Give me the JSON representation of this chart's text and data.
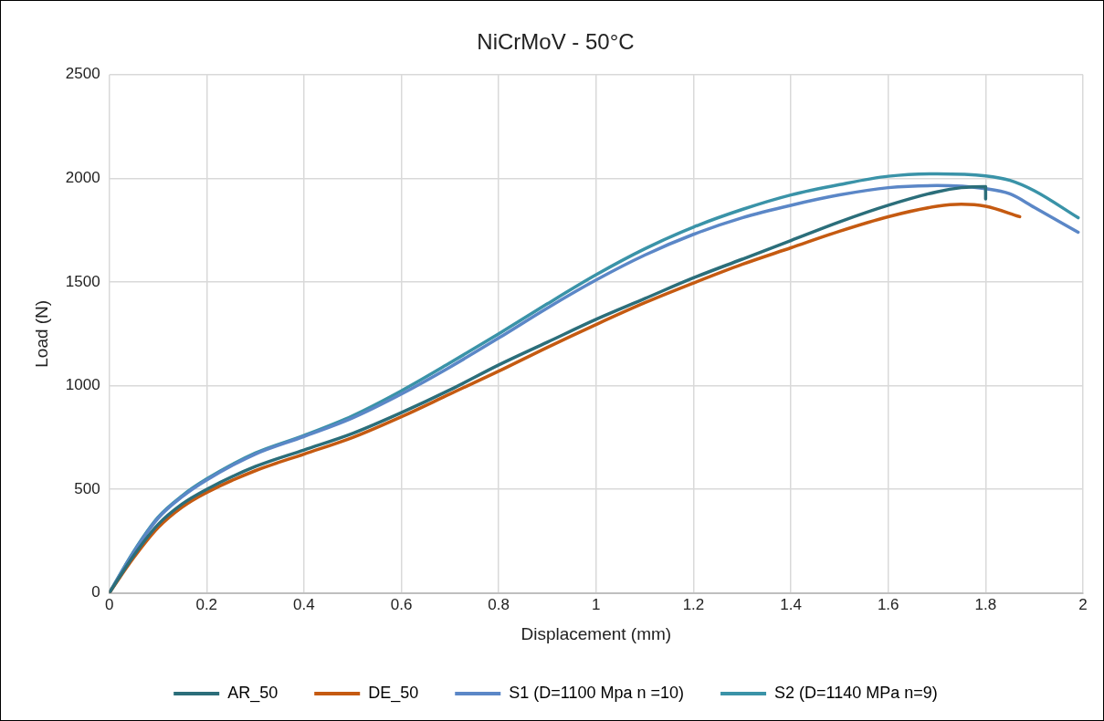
{
  "chart_data": {
    "type": "line",
    "title": "NiCrMoV - 50°C",
    "xlabel": "Displacement (mm)",
    "ylabel": "Load (N)",
    "xlim": [
      0,
      2
    ],
    "xticks": [
      0,
      {
        "value": 0.2,
        "label": "0.2"
      },
      {
        "value": 0.4,
        "label": "0.4"
      },
      {
        "value": 0.6,
        "label": "0.6"
      },
      {
        "value": 0.8,
        "label": "0.8"
      },
      1,
      {
        "value": 1.2,
        "label": "1.2"
      },
      {
        "value": 1.4,
        "label": "1.4"
      },
      {
        "value": 1.6,
        "label": "1.6"
      },
      {
        "value": 1.8,
        "label": "1.8"
      },
      2
    ],
    "ylim": [
      0,
      2500
    ],
    "yticks": [
      0,
      500,
      1000,
      1500,
      2000,
      2500
    ],
    "grid": true,
    "legend": "bottom",
    "marker": "none",
    "line_style": "solid",
    "series": [
      {
        "name": "AR_50",
        "color": "#2b6e7a",
        "x": [
          0,
          0.05,
          0.1,
          0.15,
          0.2,
          0.3,
          0.4,
          0.5,
          0.6,
          0.7,
          0.8,
          0.9,
          1.0,
          1.1,
          1.2,
          1.3,
          1.4,
          1.5,
          1.6,
          1.7,
          1.75,
          1.8,
          1.8
        ],
        "values": [
          0,
          180,
          330,
          430,
          500,
          610,
          690,
          770,
          870,
          980,
          1100,
          1210,
          1320,
          1420,
          1520,
          1610,
          1700,
          1790,
          1870,
          1935,
          1955,
          1960,
          1900
        ]
      },
      {
        "name": "DE_50",
        "color": "#c55a11",
        "x": [
          0,
          0.05,
          0.1,
          0.15,
          0.2,
          0.3,
          0.4,
          0.5,
          0.6,
          0.7,
          0.8,
          0.9,
          1.0,
          1.1,
          1.2,
          1.3,
          1.4,
          1.5,
          1.6,
          1.7,
          1.75,
          1.8,
          1.87
        ],
        "values": [
          0,
          170,
          315,
          415,
          485,
          590,
          670,
          750,
          850,
          960,
          1070,
          1185,
          1295,
          1400,
          1495,
          1585,
          1665,
          1745,
          1815,
          1865,
          1875,
          1865,
          1815
        ]
      },
      {
        "name": "S1 (D=1100 Mpa n =10)",
        "color": "#5b87c7",
        "x": [
          0,
          0.05,
          0.1,
          0.15,
          0.2,
          0.3,
          0.4,
          0.5,
          0.6,
          0.7,
          0.8,
          0.9,
          1.0,
          1.1,
          1.2,
          1.3,
          1.4,
          1.5,
          1.6,
          1.7,
          1.8,
          1.85,
          1.9,
          1.99
        ],
        "values": [
          0,
          195,
          360,
          465,
          545,
          670,
          755,
          845,
          960,
          1090,
          1230,
          1375,
          1510,
          1630,
          1730,
          1810,
          1870,
          1920,
          1955,
          1965,
          1950,
          1925,
          1860,
          1740
        ]
      },
      {
        "name": "S2 (D=1140 MPa n=9)",
        "color": "#3a93a8",
        "x": [
          0,
          0.05,
          0.1,
          0.15,
          0.2,
          0.3,
          0.4,
          0.5,
          0.6,
          0.7,
          0.8,
          0.9,
          1.0,
          1.1,
          1.2,
          1.3,
          1.4,
          1.5,
          1.6,
          1.7,
          1.8,
          1.85,
          1.9,
          1.99
        ],
        "values": [
          0,
          200,
          365,
          470,
          550,
          675,
          760,
          855,
          975,
          1110,
          1250,
          1395,
          1535,
          1660,
          1765,
          1850,
          1920,
          1970,
          2010,
          2022,
          2012,
          1990,
          1940,
          1810
        ]
      }
    ]
  }
}
